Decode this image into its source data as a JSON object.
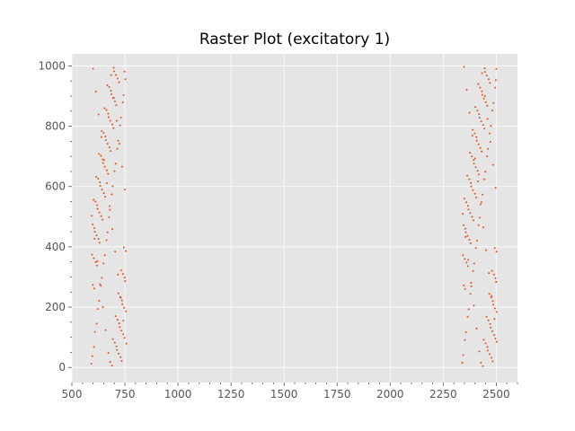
{
  "chart_data": {
    "type": "scatter",
    "title": "Raster Plot (excitatory 1)",
    "xlabel": "",
    "ylabel": "",
    "xlim": [
      500,
      2600
    ],
    "ylim": [
      -50,
      1040
    ],
    "xticks": [
      500,
      750,
      1000,
      1250,
      1500,
      1750,
      2000,
      2250,
      2500
    ],
    "xtick_labels": [
      "500",
      "750",
      "1000",
      "1250",
      "1500",
      "1750",
      "2000",
      "2250",
      "2500"
    ],
    "yticks": [
      0,
      200,
      400,
      600,
      800,
      1000
    ],
    "ytick_labels": [
      "0",
      "200",
      "400",
      "600",
      "800",
      "1000"
    ],
    "grid": true,
    "background": "#e5e5e5",
    "marker_color": "#e8501a",
    "series": [
      {
        "points": [
          [
            592,
            12
          ],
          [
            604,
            68
          ],
          [
            617,
            145
          ],
          [
            628,
            221
          ],
          [
            641,
            297
          ],
          [
            655,
            372
          ],
          [
            668,
            448
          ],
          [
            679,
            523
          ],
          [
            692,
            601
          ],
          [
            706,
            676
          ],
          [
            718,
            752
          ],
          [
            731,
            829
          ],
          [
            744,
            903
          ],
          [
            748,
            981
          ],
          [
            596,
            37
          ],
          [
            609,
            118
          ],
          [
            622,
            194
          ],
          [
            636,
            271
          ],
          [
            649,
            345
          ],
          [
            663,
            422
          ],
          [
            675,
            498
          ],
          [
            688,
            574
          ],
          [
            701,
            651
          ],
          [
            714,
            725
          ],
          [
            727,
            803
          ],
          [
            740,
            879
          ],
          [
            752,
            956
          ],
          [
            600,
            991
          ],
          [
            613,
            915
          ],
          [
            626,
            839
          ],
          [
            639,
            764
          ],
          [
            652,
            688
          ],
          [
            665,
            611
          ],
          [
            678,
            535
          ],
          [
            691,
            459
          ],
          [
            704,
            384
          ],
          [
            717,
            308
          ],
          [
            730,
            231
          ],
          [
            743,
            155
          ],
          [
            756,
            79
          ],
          [
            594,
            503
          ],
          [
            607,
            427
          ],
          [
            620,
            352
          ],
          [
            633,
            276
          ],
          [
            646,
            200
          ],
          [
            659,
            124
          ],
          [
            672,
            48
          ],
          [
            685,
            970
          ],
          [
            698,
            894
          ],
          [
            711,
            818
          ],
          [
            724,
            742
          ],
          [
            737,
            666
          ],
          [
            750,
            590
          ],
          [
            602,
            556
          ],
          [
            615,
            632
          ],
          [
            628,
            708
          ],
          [
            641,
            784
          ],
          [
            654,
            860
          ],
          [
            667,
            936
          ],
          [
            680,
            18
          ],
          [
            693,
            94
          ],
          [
            706,
            170
          ],
          [
            719,
            246
          ],
          [
            732,
            322
          ],
          [
            745,
            398
          ],
          [
            598,
            474
          ],
          [
            611,
            550
          ],
          [
            624,
            626
          ],
          [
            637,
            702
          ],
          [
            650,
            778
          ],
          [
            663,
            854
          ],
          [
            676,
            930
          ],
          [
            689,
            6
          ],
          [
            702,
            82
          ],
          [
            715,
            158
          ],
          [
            728,
            234
          ],
          [
            741,
            310
          ],
          [
            754,
            386
          ],
          [
            606,
            462
          ],
          [
            619,
            538
          ],
          [
            632,
            614
          ],
          [
            645,
            690
          ],
          [
            658,
            766
          ],
          [
            671,
            842
          ],
          [
            684,
            918
          ],
          [
            697,
            994
          ],
          [
            710,
            70
          ],
          [
            723,
            146
          ],
          [
            736,
            222
          ],
          [
            749,
            298
          ],
          [
            595,
            374
          ],
          [
            608,
            450
          ],
          [
            621,
            526
          ],
          [
            634,
            602
          ],
          [
            647,
            678
          ],
          [
            660,
            754
          ],
          [
            673,
            830
          ],
          [
            686,
            906
          ],
          [
            699,
            982
          ],
          [
            712,
            58
          ],
          [
            725,
            134
          ],
          [
            738,
            210
          ],
          [
            751,
            286
          ],
          [
            603,
            362
          ],
          [
            616,
            438
          ],
          [
            629,
            514
          ],
          [
            642,
            590
          ],
          [
            655,
            666
          ],
          [
            668,
            742
          ],
          [
            681,
            818
          ],
          [
            694,
            894
          ],
          [
            707,
            970
          ],
          [
            720,
            46
          ],
          [
            733,
            122
          ],
          [
            746,
            198
          ],
          [
            599,
            274
          ],
          [
            612,
            350
          ],
          [
            625,
            426
          ],
          [
            638,
            502
          ],
          [
            651,
            578
          ],
          [
            664,
            654
          ],
          [
            677,
            730
          ],
          [
            690,
            806
          ],
          [
            703,
            882
          ],
          [
            716,
            958
          ],
          [
            729,
            34
          ],
          [
            742,
            110
          ],
          [
            755,
            186
          ],
          [
            605,
            262
          ],
          [
            618,
            338
          ],
          [
            631,
            414
          ],
          [
            644,
            490
          ],
          [
            657,
            566
          ],
          [
            670,
            642
          ],
          [
            683,
            718
          ],
          [
            696,
            794
          ],
          [
            709,
            870
          ],
          [
            722,
            946
          ],
          [
            735,
            22
          ],
          [
            748,
            98
          ],
          [
            2340,
            15
          ],
          [
            2352,
            91
          ],
          [
            2365,
            168
          ],
          [
            2378,
            244
          ],
          [
            2391,
            320
          ],
          [
            2404,
            396
          ],
          [
            2417,
            472
          ],
          [
            2430,
            548
          ],
          [
            2443,
            624
          ],
          [
            2456,
            700
          ],
          [
            2469,
            776
          ],
          [
            2482,
            852
          ],
          [
            2495,
            928
          ],
          [
            2500,
            990
          ],
          [
            2344,
            41
          ],
          [
            2357,
            117
          ],
          [
            2370,
            193
          ],
          [
            2383,
            269
          ],
          [
            2396,
            345
          ],
          [
            2409,
            421
          ],
          [
            2422,
            497
          ],
          [
            2435,
            573
          ],
          [
            2448,
            649
          ],
          [
            2461,
            725
          ],
          [
            2474,
            801
          ],
          [
            2487,
            877
          ],
          [
            2498,
            953
          ],
          [
            2348,
            997
          ],
          [
            2361,
            921
          ],
          [
            2374,
            845
          ],
          [
            2387,
            769
          ],
          [
            2400,
            693
          ],
          [
            2413,
            617
          ],
          [
            2426,
            541
          ],
          [
            2439,
            465
          ],
          [
            2452,
            389
          ],
          [
            2465,
            313
          ],
          [
            2478,
            237
          ],
          [
            2491,
            161
          ],
          [
            2502,
            85
          ],
          [
            2342,
            509
          ],
          [
            2355,
            433
          ],
          [
            2368,
            357
          ],
          [
            2381,
            281
          ],
          [
            2394,
            205
          ],
          [
            2407,
            129
          ],
          [
            2420,
            53
          ],
          [
            2433,
            976
          ],
          [
            2446,
            900
          ],
          [
            2459,
            824
          ],
          [
            2472,
            748
          ],
          [
            2485,
            672
          ],
          [
            2497,
            596
          ],
          [
            2350,
            560
          ],
          [
            2363,
            636
          ],
          [
            2376,
            712
          ],
          [
            2389,
            788
          ],
          [
            2402,
            864
          ],
          [
            2415,
            940
          ],
          [
            2428,
            16
          ],
          [
            2441,
            92
          ],
          [
            2454,
            168
          ],
          [
            2467,
            244
          ],
          [
            2480,
            320
          ],
          [
            2493,
            396
          ],
          [
            2346,
            472
          ],
          [
            2359,
            548
          ],
          [
            2372,
            624
          ],
          [
            2385,
            700
          ],
          [
            2398,
            776
          ],
          [
            2411,
            852
          ],
          [
            2424,
            928
          ],
          [
            2437,
            4
          ],
          [
            2450,
            80
          ],
          [
            2463,
            156
          ],
          [
            2476,
            232
          ],
          [
            2489,
            308
          ],
          [
            2501,
            384
          ],
          [
            2354,
            460
          ],
          [
            2367,
            536
          ],
          [
            2380,
            612
          ],
          [
            2393,
            688
          ],
          [
            2406,
            764
          ],
          [
            2419,
            840
          ],
          [
            2432,
            916
          ],
          [
            2445,
            992
          ],
          [
            2458,
            68
          ],
          [
            2471,
            144
          ],
          [
            2484,
            220
          ],
          [
            2496,
            296
          ],
          [
            2343,
            372
          ],
          [
            2356,
            448
          ],
          [
            2369,
            524
          ],
          [
            2382,
            600
          ],
          [
            2395,
            676
          ],
          [
            2408,
            752
          ],
          [
            2421,
            828
          ],
          [
            2434,
            904
          ],
          [
            2447,
            980
          ],
          [
            2460,
            56
          ],
          [
            2473,
            132
          ],
          [
            2486,
            208
          ],
          [
            2499,
            284
          ],
          [
            2351,
            360
          ],
          [
            2364,
            436
          ],
          [
            2377,
            512
          ],
          [
            2390,
            588
          ],
          [
            2403,
            664
          ],
          [
            2416,
            740
          ],
          [
            2429,
            816
          ],
          [
            2442,
            892
          ],
          [
            2455,
            968
          ],
          [
            2468,
            44
          ],
          [
            2481,
            120
          ],
          [
            2494,
            196
          ],
          [
            2347,
            272
          ],
          [
            2360,
            348
          ],
          [
            2373,
            424
          ],
          [
            2386,
            500
          ],
          [
            2399,
            576
          ],
          [
            2412,
            652
          ],
          [
            2425,
            728
          ],
          [
            2438,
            804
          ],
          [
            2451,
            880
          ],
          [
            2464,
            956
          ],
          [
            2477,
            32
          ],
          [
            2490,
            108
          ],
          [
            2502,
            184
          ],
          [
            2353,
            260
          ],
          [
            2366,
            336
          ],
          [
            2379,
            412
          ],
          [
            2392,
            488
          ],
          [
            2405,
            564
          ],
          [
            2418,
            640
          ],
          [
            2431,
            716
          ],
          [
            2444,
            792
          ],
          [
            2457,
            868
          ],
          [
            2470,
            944
          ],
          [
            2483,
            20
          ],
          [
            2496,
            96
          ]
        ]
      }
    ]
  }
}
